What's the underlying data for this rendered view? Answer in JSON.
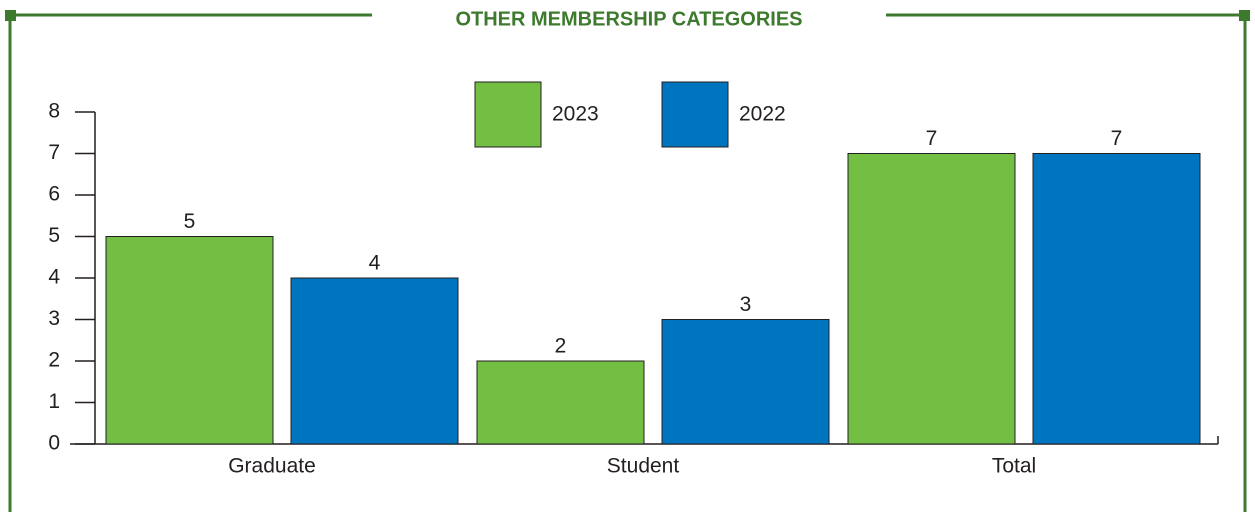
{
  "chart_data": {
    "type": "bar",
    "title": "OTHER MEMBERSHIP CATEGORIES",
    "categories": [
      "Graduate",
      "Student",
      "Total"
    ],
    "series": [
      {
        "name": "2023",
        "color": "#72bf44",
        "values": [
          5,
          2,
          7
        ]
      },
      {
        "name": "2022",
        "color": "#0075bf",
        "values": [
          4,
          3,
          7
        ]
      }
    ],
    "ylim": [
      0,
      8
    ],
    "yticks": [
      0,
      1,
      2,
      3,
      4,
      5,
      6,
      7,
      8
    ],
    "legend": "top"
  }
}
